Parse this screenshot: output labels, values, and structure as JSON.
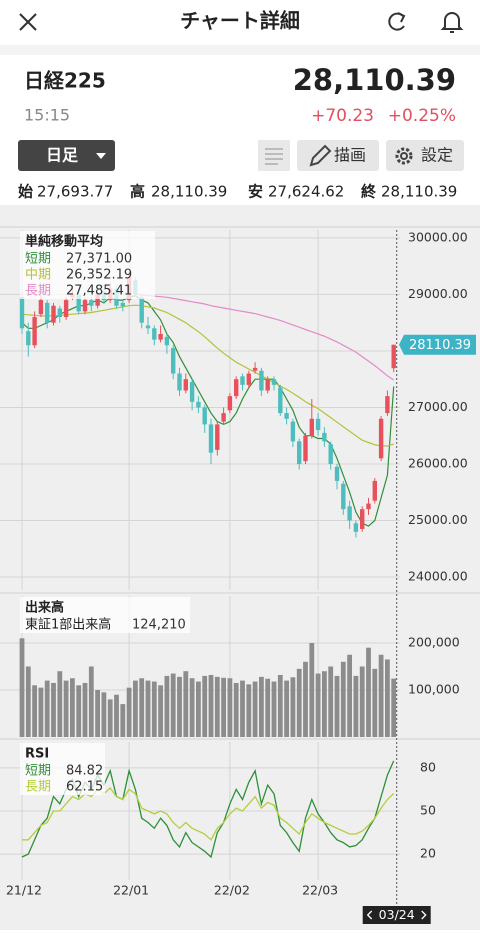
{
  "header": {
    "title": "チャート詳細"
  },
  "quote": {
    "name": "日経225",
    "time": "15:15",
    "price": "28,110.39",
    "change": "+70.23",
    "change_pct": "+0.25%"
  },
  "toolbar": {
    "period": "日足",
    "draw": "描画",
    "settings": "設定"
  },
  "ohlc_summary": [
    {
      "label": "始",
      "value": "27,693.77"
    },
    {
      "label": "高",
      "value": "28,110.39"
    },
    {
      "label": "安",
      "value": "27,624.62"
    },
    {
      "label": "終",
      "value": "28,110.39"
    }
  ],
  "cursor_date": "03/24",
  "chart_data": [
    {
      "type": "candlestick",
      "title": "単純移動平均",
      "up_color": "#e8505b",
      "down_color": "#4dbdbd",
      "last_price_color": "#3db4c6",
      "ohlc": [
        [
          28950,
          29050,
          28300,
          28400
        ],
        [
          28350,
          28500,
          27900,
          28100
        ],
        [
          28100,
          28700,
          28050,
          28600
        ],
        [
          28650,
          29000,
          28600,
          28900
        ],
        [
          28850,
          28900,
          28400,
          28500
        ],
        [
          28500,
          28850,
          28450,
          28800
        ],
        [
          28750,
          28800,
          28500,
          28600
        ],
        [
          28600,
          28950,
          28550,
          28900
        ],
        [
          28950,
          29100,
          28900,
          29000
        ],
        [
          29000,
          29050,
          28650,
          28700
        ],
        [
          28700,
          28950,
          28650,
          28900
        ],
        [
          28900,
          28950,
          28700,
          28800
        ],
        [
          28800,
          29050,
          28750,
          29000
        ],
        [
          29050,
          29100,
          28850,
          28900
        ],
        [
          28900,
          29200,
          28850,
          29100
        ],
        [
          29100,
          29150,
          28750,
          28800
        ],
        [
          28850,
          28900,
          28700,
          28790
        ],
        [
          28900,
          29400,
          28850,
          29300
        ],
        [
          29250,
          29300,
          28950,
          29000
        ],
        [
          28950,
          29000,
          28400,
          28500
        ],
        [
          28450,
          28600,
          28300,
          28400
        ],
        [
          28400,
          28450,
          28100,
          28200
        ],
        [
          28200,
          28450,
          28150,
          28300
        ],
        [
          28250,
          28300,
          27950,
          28100
        ],
        [
          28050,
          28100,
          27500,
          27600
        ],
        [
          27600,
          27700,
          27200,
          27300
        ],
        [
          27300,
          27600,
          27250,
          27500
        ],
        [
          27450,
          27500,
          26950,
          27100
        ],
        [
          27100,
          27200,
          26900,
          27000
        ],
        [
          27000,
          27050,
          26550,
          26700
        ],
        [
          26700,
          26800,
          26000,
          26200
        ],
        [
          26250,
          26750,
          26150,
          26700
        ],
        [
          26750,
          27000,
          26700,
          26900
        ],
        [
          26950,
          27250,
          26900,
          27200
        ],
        [
          27200,
          27550,
          27150,
          27500
        ],
        [
          27550,
          27600,
          27300,
          27400
        ],
        [
          27400,
          27650,
          27350,
          27600
        ],
        [
          27650,
          27800,
          27600,
          27700
        ],
        [
          27650,
          27700,
          27200,
          27300
        ],
        [
          27300,
          27550,
          27250,
          27500
        ],
        [
          27500,
          27550,
          27300,
          27400
        ],
        [
          27350,
          27400,
          26850,
          26900
        ],
        [
          26900,
          27000,
          26700,
          26800
        ],
        [
          26750,
          26800,
          26300,
          26400
        ],
        [
          26400,
          26450,
          25900,
          26000
        ],
        [
          26050,
          26550,
          26000,
          26500
        ],
        [
          26500,
          27150,
          26450,
          26800
        ],
        [
          26800,
          26900,
          26500,
          26600
        ],
        [
          26550,
          26650,
          26300,
          26400
        ],
        [
          26350,
          26400,
          25900,
          26000
        ],
        [
          25950,
          26000,
          25550,
          25700
        ],
        [
          25650,
          25700,
          25100,
          25200
        ],
        [
          25250,
          25350,
          24850,
          25000
        ],
        [
          24950,
          25000,
          24700,
          24800
        ],
        [
          24850,
          25250,
          24800,
          25200
        ],
        [
          25200,
          25400,
          25100,
          25300
        ],
        [
          25350,
          25750,
          25300,
          25700
        ],
        [
          26100,
          26850,
          26050,
          26800
        ],
        [
          26900,
          27300,
          26850,
          27200
        ],
        [
          27693.77,
          28110.39,
          27624.62,
          28110.39
        ]
      ],
      "series": [
        {
          "name": "短期",
          "color": "#2f8f3a",
          "last_value_label": "27,371.00",
          "values": [
            28500,
            28400,
            28400,
            28450,
            28500,
            28550,
            28650,
            28700,
            28750,
            28800,
            28800,
            28850,
            28900,
            28850,
            28950,
            28900,
            28900,
            28950,
            28980,
            28900,
            28850,
            28700,
            28550,
            28300,
            28150,
            27900,
            27700,
            27500,
            27300,
            27100,
            26900,
            26750,
            26700,
            26750,
            26900,
            27150,
            27350,
            27500,
            27500,
            27500,
            27500,
            27350,
            27150,
            26950,
            26650,
            26500,
            26500,
            26450,
            26450,
            26350,
            26100,
            25800,
            25500,
            25150,
            24950,
            24900,
            25000,
            25400,
            25800,
            27371
          ]
        },
        {
          "name": "中期",
          "color": "#b5c23a",
          "last_value_label": "26,352.19",
          "values": [
            28650,
            28640,
            28630,
            28620,
            28620,
            28620,
            28630,
            28640,
            28650,
            28660,
            28670,
            28680,
            28700,
            28720,
            28740,
            28760,
            28780,
            28800,
            28810,
            28800,
            28780,
            28760,
            28720,
            28680,
            28620,
            28560,
            28500,
            28420,
            28340,
            28250,
            28150,
            28050,
            27960,
            27880,
            27800,
            27740,
            27680,
            27620,
            27560,
            27500,
            27440,
            27380,
            27320,
            27250,
            27180,
            27100,
            27040,
            26980,
            26900,
            26820,
            26740,
            26660,
            26580,
            26500,
            26420,
            26380,
            26340,
            26320,
            26320,
            26352.19
          ]
        },
        {
          "name": "長期",
          "color": "#e58ac8",
          "last_value_label": "27,485.41",
          "values": [
            null,
            null,
            null,
            null,
            null,
            null,
            null,
            null,
            null,
            null,
            null,
            null,
            null,
            null,
            null,
            null,
            null,
            null,
            29000,
            28990,
            28980,
            28970,
            28960,
            28950,
            28930,
            28910,
            28890,
            28870,
            28850,
            28830,
            28800,
            28780,
            28760,
            28740,
            28720,
            28700,
            28680,
            28660,
            28630,
            28600,
            28570,
            28540,
            28500,
            28460,
            28420,
            28380,
            28340,
            28300,
            28260,
            28210,
            28160,
            28100,
            28040,
            27980,
            27900,
            27820,
            27740,
            27650,
            27560,
            27485.41
          ]
        }
      ],
      "ylim": [
        23770,
        30140
      ],
      "yticks": [
        {
          "value": 24000,
          "label": "24000.00"
        },
        {
          "value": 25000,
          "label": "25000.00"
        },
        {
          "value": 26000,
          "label": "26000.00"
        },
        {
          "value": 27000,
          "label": "27000.00"
        },
        {
          "value": 28000,
          "label": "28000.00"
        },
        {
          "value": 29000,
          "label": "29000.00"
        },
        {
          "value": 30000,
          "label": "30000.00"
        }
      ],
      "xticks": [
        {
          "value": 0,
          "label": "21/12"
        },
        {
          "value": 17,
          "label": "22/01"
        },
        {
          "value": 33,
          "label": "22/02"
        },
        {
          "value": 47,
          "label": "22/03"
        }
      ],
      "grid": true
    },
    {
      "type": "bar",
      "title": "出来高",
      "series": [
        {
          "name": "東証1部出来高",
          "color": "#8c8c8c",
          "last_value_label": "124,210",
          "values": [
            210000,
            150000,
            110000,
            105000,
            120000,
            115000,
            140000,
            120000,
            125000,
            110000,
            115000,
            150000,
            100000,
            95000,
            80000,
            90000,
            70000,
            105000,
            120000,
            125000,
            120000,
            118000,
            110000,
            130000,
            135000,
            128000,
            140000,
            125000,
            118000,
            130000,
            132000,
            128000,
            126000,
            125000,
            115000,
            120000,
            112000,
            118000,
            128000,
            124000,
            118000,
            132000,
            120000,
            127000,
            145000,
            160000,
            200000,
            135000,
            140000,
            150000,
            130000,
            160000,
            175000,
            130000,
            150000,
            190000,
            145000,
            175000,
            165000,
            124210
          ]
        }
      ],
      "ylim": [
        0,
        300000
      ],
      "yticks": [
        {
          "value": 100000,
          "label": "100,000"
        },
        {
          "value": 200000,
          "label": "200,000"
        }
      ],
      "grid": true
    },
    {
      "type": "line",
      "title": "RSI",
      "series": [
        {
          "name": "短期",
          "color": "#2f8f3a",
          "values": [
            18,
            20,
            30,
            40,
            45,
            60,
            55,
            65,
            72,
            60,
            70,
            65,
            75,
            68,
            78,
            60,
            58,
            78,
            65,
            45,
            42,
            38,
            45,
            40,
            30,
            25,
            35,
            28,
            25,
            22,
            18,
            35,
            42,
            55,
            65,
            58,
            70,
            78,
            55,
            68,
            62,
            40,
            35,
            28,
            22,
            45,
            58,
            48,
            42,
            35,
            30,
            28,
            25,
            26,
            30,
            38,
            45,
            60,
            75,
            84.82
          ]
        },
        {
          "name": "長期",
          "color": "#b3cf3a",
          "values": [
            30,
            30,
            35,
            40,
            42,
            50,
            50,
            55,
            60,
            58,
            62,
            60,
            65,
            62,
            66,
            60,
            58,
            65,
            62,
            52,
            50,
            48,
            50,
            48,
            42,
            38,
            42,
            38,
            36,
            34,
            30,
            38,
            42,
            48,
            52,
            50,
            55,
            60,
            52,
            56,
            54,
            45,
            42,
            38,
            34,
            42,
            48,
            45,
            42,
            40,
            38,
            36,
            34,
            34,
            36,
            40,
            45,
            52,
            58,
            62.15
          ]
        }
      ],
      "ylim": [
        2,
        98
      ],
      "yticks": [
        20,
        50,
        80
      ],
      "grid": true
    }
  ]
}
